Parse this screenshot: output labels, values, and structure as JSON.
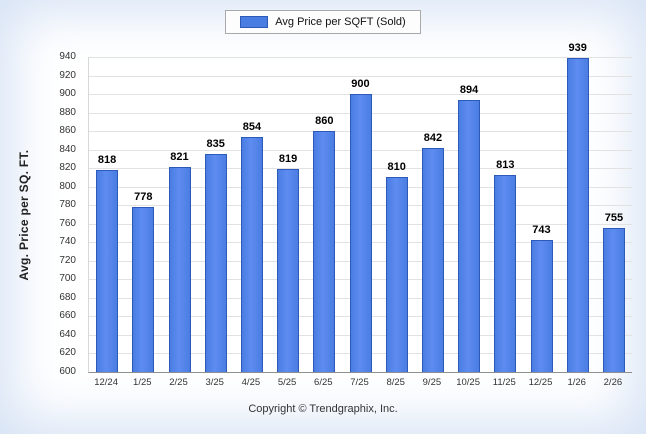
{
  "legend": {
    "label": "Avg Price per SQFT (Sold)"
  },
  "footer": {
    "copyright": "Copyright © Trendgraphix, Inc."
  },
  "colors": {
    "bar": "#4a7de2",
    "bar_border": "#2d59b8",
    "grid": "#e2e2e2"
  },
  "chart_data": {
    "type": "bar",
    "title": "",
    "xlabel": "",
    "ylabel": "Avg. Price per SQ. FT.",
    "categories": [
      "12/24",
      "1/25",
      "2/25",
      "3/25",
      "4/25",
      "5/25",
      "6/25",
      "7/25",
      "8/25",
      "9/25",
      "10/25",
      "11/25",
      "12/25",
      "1/26",
      "2/26"
    ],
    "values": [
      818,
      778,
      821,
      835,
      854,
      819,
      860,
      900,
      810,
      842,
      894,
      813,
      743,
      939,
      755
    ],
    "ylim": [
      600,
      940
    ],
    "ytick_step": 20,
    "grid": true,
    "legend_position": "top",
    "legend_entries": [
      "Avg Price per SQFT (Sold)"
    ]
  }
}
